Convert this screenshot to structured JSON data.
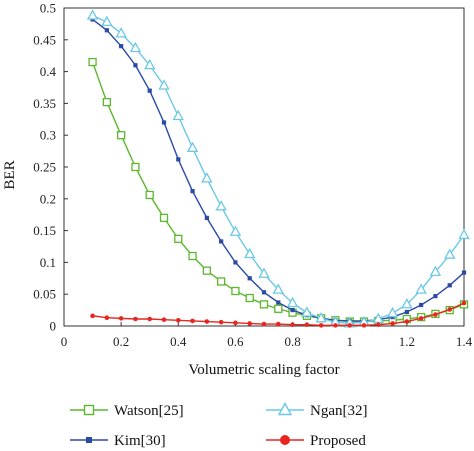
{
  "chart_data": {
    "type": "line",
    "title": "",
    "xlabel": "Volumetric scaling factor",
    "ylabel": "BER",
    "xlim": [
      0,
      1.4
    ],
    "ylim": [
      0,
      0.5
    ],
    "xticks": [
      "0",
      "0.2",
      "0.4",
      "0.6",
      "0.8",
      "1",
      "1.2",
      "1.4"
    ],
    "yticks": [
      "0",
      "0.05",
      "0.1",
      "0.15",
      "0.2",
      "0.25",
      "0.3",
      "0.35",
      "0.4",
      "0.45",
      "0.5"
    ],
    "grid": false,
    "legend_position": "bottom",
    "series": [
      {
        "name": "Watson[25]",
        "color": "#5cb82e",
        "marker": "square",
        "x": [
          0.1,
          0.15,
          0.2,
          0.25,
          0.3,
          0.35,
          0.4,
          0.45,
          0.5,
          0.55,
          0.6,
          0.65,
          0.7,
          0.75,
          0.8,
          0.85,
          0.9,
          0.95,
          1.0,
          1.05,
          1.1,
          1.15,
          1.2,
          1.25,
          1.3,
          1.35,
          1.4
        ],
        "y": [
          0.415,
          0.352,
          0.3,
          0.25,
          0.206,
          0.17,
          0.137,
          0.11,
          0.087,
          0.07,
          0.055,
          0.044,
          0.034,
          0.027,
          0.021,
          0.016,
          0.012,
          0.009,
          0.007,
          0.007,
          0.008,
          0.009,
          0.011,
          0.014,
          0.019,
          0.025,
          0.034
        ]
      },
      {
        "name": "Kim[30]",
        "color": "#2b4aa5",
        "marker": "small-square",
        "x": [
          0.1,
          0.15,
          0.2,
          0.25,
          0.3,
          0.35,
          0.4,
          0.45,
          0.5,
          0.55,
          0.6,
          0.65,
          0.7,
          0.75,
          0.8,
          0.85,
          0.9,
          0.95,
          1.0,
          1.05,
          1.1,
          1.15,
          1.2,
          1.25,
          1.3,
          1.35,
          1.4
        ],
        "y": [
          0.482,
          0.465,
          0.44,
          0.41,
          0.37,
          0.32,
          0.262,
          0.212,
          0.17,
          0.133,
          0.1,
          0.075,
          0.053,
          0.037,
          0.025,
          0.017,
          0.012,
          0.009,
          0.008,
          0.008,
          0.01,
          0.014,
          0.022,
          0.033,
          0.047,
          0.064,
          0.084
        ]
      },
      {
        "name": "Ngan[32]",
        "color": "#6cc8e6",
        "marker": "triangle",
        "x": [
          0.1,
          0.15,
          0.2,
          0.25,
          0.3,
          0.35,
          0.4,
          0.45,
          0.5,
          0.55,
          0.6,
          0.65,
          0.7,
          0.75,
          0.8,
          0.85,
          0.9,
          0.95,
          1.0,
          1.05,
          1.1,
          1.15,
          1.2,
          1.25,
          1.3,
          1.35,
          1.4
        ],
        "y": [
          0.488,
          0.478,
          0.46,
          0.437,
          0.41,
          0.378,
          0.33,
          0.28,
          0.232,
          0.188,
          0.148,
          0.113,
          0.082,
          0.057,
          0.036,
          0.021,
          0.012,
          0.006,
          0.004,
          0.006,
          0.011,
          0.02,
          0.034,
          0.057,
          0.085,
          0.112,
          0.143
        ]
      },
      {
        "name": "Proposed",
        "color": "#e8261e",
        "marker": "circle",
        "x": [
          0.1,
          0.15,
          0.2,
          0.25,
          0.3,
          0.35,
          0.4,
          0.45,
          0.5,
          0.55,
          0.6,
          0.65,
          0.7,
          0.75,
          0.8,
          0.85,
          0.9,
          0.95,
          1.0,
          1.05,
          1.1,
          1.15,
          1.2,
          1.25,
          1.3,
          1.35,
          1.4
        ],
        "y": [
          0.016,
          0.013,
          0.012,
          0.011,
          0.011,
          0.01,
          0.009,
          0.008,
          0.007,
          0.006,
          0.005,
          0.004,
          0.003,
          0.003,
          0.002,
          0.002,
          0.001,
          0.001,
          0.001,
          0.001,
          0.002,
          0.004,
          0.007,
          0.012,
          0.018,
          0.026,
          0.036
        ]
      }
    ]
  }
}
